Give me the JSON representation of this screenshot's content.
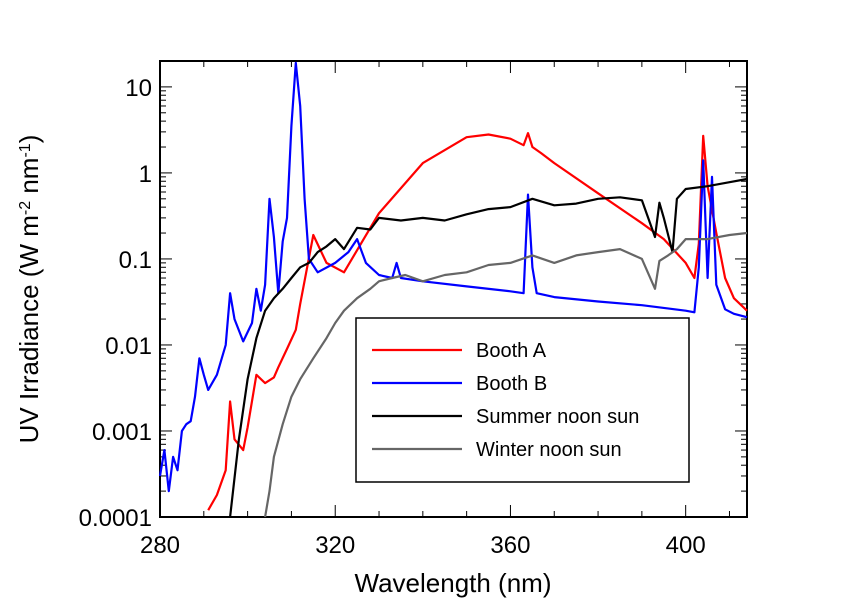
{
  "chart_data": {
    "type": "line",
    "title": "",
    "xlabel": "Wavelength (nm)",
    "ylabel": {
      "main": "UV Irradiance (W m",
      "sup1": "-2",
      "mid": " nm",
      "sup2": "-1",
      "end": ")"
    },
    "yscale": "log",
    "xlim": [
      280,
      414
    ],
    "ylim": [
      0.0001,
      20
    ],
    "x_ticks": [
      280,
      320,
      360,
      400
    ],
    "x_tick_labels": [
      "280",
      "320",
      "360",
      "400"
    ],
    "y_ticks": [
      0.0001,
      0.001,
      0.01,
      0.1,
      1,
      10
    ],
    "y_tick_labels": [
      "0.0001",
      "0.001",
      "0.01",
      "0.1",
      "1",
      "10"
    ],
    "legend_position": "bottom-right",
    "series": [
      {
        "name": "Booth A",
        "color": "#ff0000",
        "x": [
          291,
          293,
          295,
          296,
          297,
          299,
          300,
          302,
          304,
          306,
          307,
          309,
          311,
          312,
          315,
          318,
          322,
          330,
          340,
          350,
          355,
          360,
          363,
          364,
          365,
          367,
          370,
          380,
          390,
          395,
          400,
          402,
          403,
          404,
          405,
          407,
          409,
          411,
          414
        ],
        "y": [
          0.00012,
          0.00018,
          0.00035,
          0.0022,
          0.0008,
          0.0006,
          0.0011,
          0.0045,
          0.0036,
          0.0042,
          0.0055,
          0.009,
          0.015,
          0.03,
          0.19,
          0.09,
          0.07,
          0.34,
          1.3,
          2.6,
          2.8,
          2.5,
          2.1,
          2.9,
          2.0,
          1.7,
          1.3,
          0.58,
          0.26,
          0.17,
          0.09,
          0.06,
          0.15,
          2.7,
          0.7,
          0.2,
          0.06,
          0.035,
          0.025
        ]
      },
      {
        "name": "Booth B",
        "color": "#0000ff",
        "x": [
          280,
          281,
          282,
          283,
          284,
          285,
          286,
          287,
          288,
          289,
          290,
          291,
          293,
          295,
          296,
          297,
          299,
          301,
          302,
          303,
          304,
          305,
          306,
          307,
          308,
          309,
          310,
          311,
          312,
          313,
          314,
          316,
          320,
          323,
          325,
          327,
          330,
          333,
          334,
          335,
          340,
          350,
          360,
          363,
          364,
          365,
          366,
          370,
          380,
          390,
          400,
          402,
          403,
          404,
          405,
          406,
          407,
          409,
          411,
          414
        ],
        "y": [
          0.0003,
          0.0006,
          0.0002,
          0.0005,
          0.00035,
          0.001,
          0.0012,
          0.0013,
          0.0025,
          0.007,
          0.0045,
          0.003,
          0.0045,
          0.01,
          0.04,
          0.02,
          0.011,
          0.018,
          0.045,
          0.025,
          0.05,
          0.5,
          0.18,
          0.04,
          0.16,
          0.3,
          3.5,
          19.0,
          6.0,
          0.5,
          0.1,
          0.07,
          0.09,
          0.12,
          0.17,
          0.09,
          0.065,
          0.06,
          0.09,
          0.06,
          0.055,
          0.048,
          0.042,
          0.04,
          0.56,
          0.08,
          0.04,
          0.036,
          0.032,
          0.029,
          0.025,
          0.024,
          0.08,
          1.4,
          0.06,
          0.9,
          0.05,
          0.026,
          0.023,
          0.021
        ]
      },
      {
        "name": "Summer noon sun",
        "color": "#000000",
        "x": [
          296,
          298,
          300,
          302,
          304,
          306,
          308,
          310,
          312,
          314,
          316,
          318,
          320,
          322,
          325,
          328,
          330,
          335,
          340,
          345,
          350,
          355,
          360,
          365,
          370,
          375,
          380,
          385,
          390,
          393,
          394,
          395,
          397,
          398,
          400,
          405,
          410,
          414
        ],
        "y": [
          0.0001,
          0.0008,
          0.004,
          0.012,
          0.025,
          0.035,
          0.045,
          0.06,
          0.08,
          0.09,
          0.12,
          0.14,
          0.17,
          0.13,
          0.23,
          0.22,
          0.3,
          0.28,
          0.3,
          0.28,
          0.33,
          0.38,
          0.4,
          0.5,
          0.42,
          0.44,
          0.5,
          0.52,
          0.48,
          0.18,
          0.45,
          0.3,
          0.12,
          0.5,
          0.65,
          0.7,
          0.78,
          0.85
        ]
      },
      {
        "name": "Winter noon sun",
        "color": "#666666",
        "x": [
          304,
          305,
          306,
          308,
          310,
          312,
          315,
          318,
          320,
          322,
          325,
          328,
          330,
          333,
          336,
          340,
          345,
          350,
          355,
          360,
          365,
          370,
          375,
          380,
          385,
          390,
          393,
          394,
          396,
          398,
          400,
          405,
          410,
          414
        ],
        "y": [
          0.0001,
          0.0002,
          0.0005,
          0.0012,
          0.0025,
          0.004,
          0.007,
          0.012,
          0.018,
          0.025,
          0.035,
          0.045,
          0.055,
          0.06,
          0.065,
          0.055,
          0.065,
          0.07,
          0.085,
          0.09,
          0.11,
          0.09,
          0.11,
          0.12,
          0.13,
          0.1,
          0.045,
          0.095,
          0.11,
          0.13,
          0.17,
          0.17,
          0.19,
          0.2
        ]
      }
    ]
  }
}
